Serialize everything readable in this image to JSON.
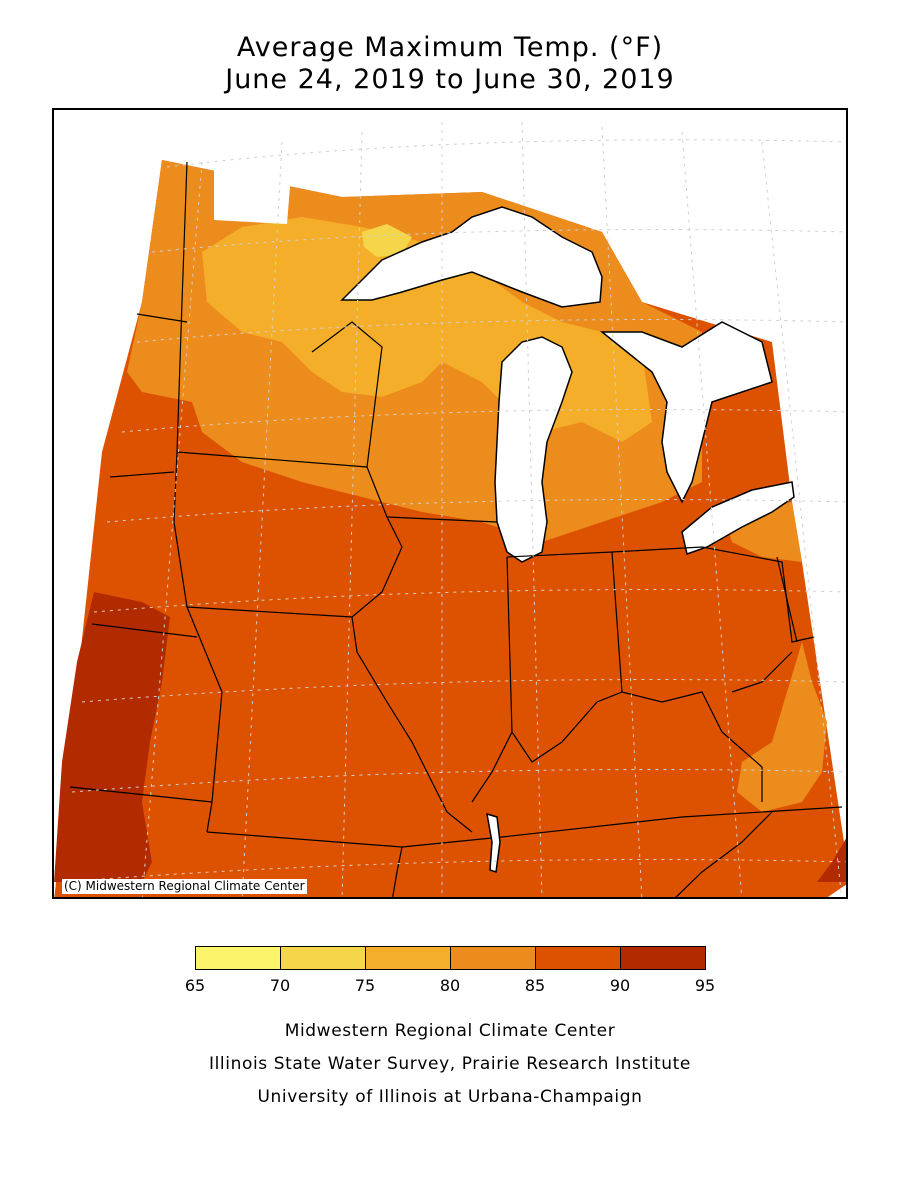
{
  "title": {
    "line1": "Average Maximum Temp. (°F)",
    "line2": "June 24, 2019 to June 30, 2019"
  },
  "map": {
    "copyright": "(C) Midwestern Regional Climate Center",
    "region": "Midwest",
    "colors": {
      "c70_75": "#f5d64a",
      "c75_80": "#f5ae2a",
      "c80_85": "#ec8c1c",
      "c85_90": "#dd5200",
      "c90_95": "#b22a00",
      "water": "#ffffff"
    }
  },
  "legend": {
    "ticks": [
      "65",
      "70",
      "75",
      "80",
      "85",
      "90",
      "95"
    ],
    "bins": [
      {
        "min": 65,
        "max": 70,
        "color": "#fbf36a"
      },
      {
        "min": 70,
        "max": 75,
        "color": "#f5d64a"
      },
      {
        "min": 75,
        "max": 80,
        "color": "#f5ae2a"
      },
      {
        "min": 80,
        "max": 85,
        "color": "#ec8c1c"
      },
      {
        "min": 85,
        "max": 90,
        "color": "#dd5200"
      },
      {
        "min": 90,
        "max": 95,
        "color": "#b22a00"
      }
    ]
  },
  "footer": {
    "line1": "Midwestern Regional Climate Center",
    "line2": "Illinois State Water Survey, Prairie Research Institute",
    "line3": "University of Illinois at Urbana-Champaign"
  }
}
